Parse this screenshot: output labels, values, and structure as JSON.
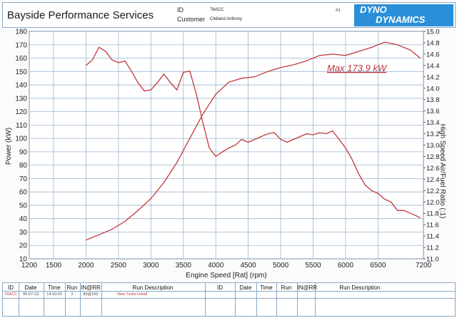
{
  "header": {
    "shop_name": "Bayside Performance Services",
    "id_label": "ID",
    "id_value": "76ACC",
    "customer_label": "Customer",
    "customer_value": "Clelland Anthony",
    "sheet_no": "#1",
    "logo_line1": "DYNO",
    "logo_line2": "DYNAMICS"
  },
  "colors": {
    "curve": "#c0383a",
    "grid": "#9ab6d4",
    "border": "#8aa8c8",
    "logo": "#2a8fd8"
  },
  "chart_data": {
    "type": "line",
    "xlabel": "Engine Speed [Rat] (rpm)",
    "ylabel": "Power (kW)",
    "y2label": "High Speed Air/Fuel Ratio (:1)",
    "xlim": [
      1200,
      7200
    ],
    "ylim": [
      10,
      180
    ],
    "y2lim": [
      11.0,
      15.0
    ],
    "x_ticks": [
      "1200",
      "1500",
      "2000",
      "2500",
      "3000",
      "3500",
      "4000",
      "4500",
      "5000",
      "5500",
      "6000",
      "6500",
      "7200"
    ],
    "y_ticks": [
      "10",
      "20",
      "30",
      "40",
      "50",
      "60",
      "70",
      "80",
      "90",
      "100",
      "110",
      "120",
      "130",
      "140",
      "150",
      "160",
      "170",
      "180"
    ],
    "y2_ticks": [
      "11.0",
      "11.2",
      "11.4",
      "11.6",
      "11.8",
      "12.0",
      "12.2",
      "12.4",
      "12.6",
      "12.8",
      "13.0",
      "13.2",
      "13.4",
      "13.6",
      "13.8",
      "14.0",
      "14.2",
      "14.4",
      "14.6",
      "14.8",
      "15.0"
    ],
    "grid": true,
    "annotation": "Max 173.9 kW",
    "series": [
      {
        "axis": "left",
        "x": [
          2000,
          2200,
          2400,
          2600,
          2800,
          3000,
          3200,
          3400,
          3600,
          3800,
          4000,
          4200,
          4400,
          4600,
          4800,
          5000,
          5200,
          5400,
          5600,
          5800,
          6000,
          6200,
          6400,
          6600,
          6800,
          7000,
          7150
        ],
        "values": [
          24,
          28,
          32,
          38,
          46,
          55,
          67,
          82,
          100,
          118,
          133,
          142,
          145,
          146,
          150,
          153,
          155,
          158,
          162,
          163,
          162,
          165,
          168,
          172,
          170,
          166,
          160
        ]
      },
      {
        "axis": "right",
        "x": [
          2000,
          2100,
          2200,
          2300,
          2400,
          2500,
          2600,
          2700,
          2800,
          2900,
          3000,
          3100,
          3200,
          3300,
          3400,
          3500,
          3600,
          3700,
          3800,
          3900,
          4000,
          4100,
          4200,
          4300,
          4400,
          4500,
          4600,
          4700,
          4800,
          4900,
          5000,
          5100,
          5200,
          5300,
          5400,
          5500,
          5600,
          5700,
          5800,
          5900,
          6000,
          6100,
          6200,
          6300,
          6400,
          6500,
          6600,
          6700,
          6800,
          6900,
          7000,
          7100,
          7150
        ],
        "values": [
          14.4,
          14.5,
          14.72,
          14.65,
          14.5,
          14.45,
          14.48,
          14.3,
          14.1,
          13.95,
          13.97,
          14.1,
          14.25,
          14.1,
          13.97,
          14.28,
          14.3,
          13.9,
          13.4,
          12.95,
          12.8,
          12.88,
          12.95,
          13.0,
          13.1,
          13.05,
          13.1,
          13.15,
          13.2,
          13.22,
          13.1,
          13.05,
          13.1,
          13.15,
          13.2,
          13.18,
          13.22,
          13.2,
          13.25,
          13.1,
          12.95,
          12.75,
          12.5,
          12.3,
          12.2,
          12.15,
          12.05,
          12.0,
          11.85,
          11.85,
          11.8,
          11.75,
          11.72
        ]
      }
    ]
  },
  "table": {
    "headers": [
      "ID",
      "Date",
      "Time",
      "Run",
      "IN@RR",
      "Run Description",
      "ID",
      "Date",
      "Time",
      "Run",
      "IN@RR",
      "Run Description"
    ],
    "row": [
      "76ACC",
      "05-07-13",
      "14:10:20",
      "2",
      "80@150",
      "New Turbo install",
      "",
      "",
      "",
      "",
      "",
      ""
    ]
  }
}
